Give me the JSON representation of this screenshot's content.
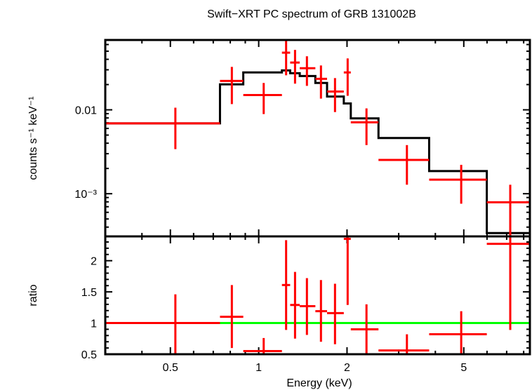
{
  "chart_data": [
    {
      "type": "line",
      "panel": "spectrum",
      "title": "Swift−XRT PC spectrum of GRB 131002B",
      "xlabel": "Energy (keV)",
      "ylabel": "counts s⁻¹ keV⁻¹",
      "xscale": "log",
      "yscale": "log",
      "xlim": [
        0.3,
        8.4
      ],
      "ylim": [
        0.00031,
        0.068
      ],
      "yticks": [
        {
          "value": 0.01,
          "label": "0.01"
        },
        {
          "value": 0.001,
          "label": "10⁻³"
        }
      ],
      "grid": false,
      "series": [
        {
          "name": "data",
          "color": "#ff0000",
          "points": [
            {
              "xlo": 0.3,
              "xhi": 0.738,
              "x": 0.52,
              "y": 0.0069,
              "ylo": 0.0034,
              "yhi": 0.0106
            },
            {
              "xlo": 0.738,
              "xhi": 0.886,
              "x": 0.81,
              "y": 0.0221,
              "ylo": 0.0117,
              "yhi": 0.0325
            },
            {
              "xlo": 0.886,
              "xhi": 1.2,
              "x": 1.04,
              "y": 0.015,
              "ylo": 0.0089,
              "yhi": 0.0209
            },
            {
              "xlo": 1.2,
              "xhi": 1.28,
              "x": 1.24,
              "y": 0.048,
              "ylo": 0.0258,
              "yhi": 0.068
            },
            {
              "xlo": 1.28,
              "xhi": 1.38,
              "x": 1.33,
              "y": 0.0366,
              "ylo": 0.0205,
              "yhi": 0.0518
            },
            {
              "xlo": 1.38,
              "xhi": 1.56,
              "x": 1.46,
              "y": 0.0313,
              "ylo": 0.0193,
              "yhi": 0.0435
            },
            {
              "xlo": 1.56,
              "xhi": 1.71,
              "x": 1.63,
              "y": 0.0234,
              "ylo": 0.0136,
              "yhi": 0.0338
            },
            {
              "xlo": 1.71,
              "xhi": 1.95,
              "x": 1.82,
              "y": 0.0165,
              "ylo": 0.0094,
              "yhi": 0.0239
            },
            {
              "xlo": 1.95,
              "xhi": 2.06,
              "x": 2.01,
              "y": 0.0279,
              "ylo": 0.0147,
              "yhi": 0.041
            },
            {
              "xlo": 2.06,
              "xhi": 2.56,
              "x": 2.33,
              "y": 0.0071,
              "ylo": 0.0038,
              "yhi": 0.0104
            },
            {
              "xlo": 2.56,
              "xhi": 3.81,
              "x": 3.2,
              "y": 0.00253,
              "ylo": 0.00128,
              "yhi": 0.0038
            },
            {
              "xlo": 3.81,
              "xhi": 5.99,
              "x": 4.9,
              "y": 0.00147,
              "ylo": 0.00076,
              "yhi": 0.00221
            },
            {
              "xlo": 5.99,
              "xhi": 8.4,
              "x": 7.2,
              "y": 0.00079,
              "ylo": 0.00028,
              "yhi": 0.00128
            }
          ]
        },
        {
          "name": "model",
          "color": "#000000",
          "steps": [
            {
              "xlo": 0.3,
              "xhi": 0.738,
              "y": 0.0069
            },
            {
              "xlo": 0.738,
              "xhi": 0.886,
              "y": 0.0201
            },
            {
              "xlo": 0.886,
              "xhi": 1.2,
              "y": 0.0279
            },
            {
              "xlo": 1.2,
              "xhi": 1.28,
              "y": 0.0295
            },
            {
              "xlo": 1.28,
              "xhi": 1.38,
              "y": 0.0273
            },
            {
              "xlo": 1.38,
              "xhi": 1.56,
              "y": 0.0253
            },
            {
              "xlo": 1.56,
              "xhi": 1.71,
              "y": 0.0209
            },
            {
              "xlo": 1.71,
              "xhi": 1.95,
              "y": 0.0144
            },
            {
              "xlo": 1.95,
              "xhi": 2.06,
              "y": 0.0119
            },
            {
              "xlo": 2.06,
              "xhi": 2.56,
              "y": 0.0079
            },
            {
              "xlo": 2.56,
              "xhi": 3.81,
              "y": 0.00461
            },
            {
              "xlo": 3.81,
              "xhi": 5.99,
              "y": 0.00186
            },
            {
              "xlo": 5.99,
              "xhi": 8.4,
              "y": 0.00034
            }
          ]
        }
      ]
    },
    {
      "type": "line",
      "panel": "ratio",
      "xlabel": "Energy (keV)",
      "ylabel": "ratio",
      "xscale": "log",
      "xlim": [
        0.3,
        8.4
      ],
      "ylim": [
        0.5,
        2.39
      ],
      "xticks": [
        {
          "value": 0.5,
          "label": "0.5"
        },
        {
          "value": 1,
          "label": "1"
        },
        {
          "value": 2,
          "label": "2"
        },
        {
          "value": 5,
          "label": "5"
        }
      ],
      "yticks": [
        {
          "value": 0.5,
          "label": "0.5"
        },
        {
          "value": 1,
          "label": "1"
        },
        {
          "value": 1.5,
          "label": "1.5"
        },
        {
          "value": 2,
          "label": "2"
        }
      ],
      "grid": false,
      "reference_line": {
        "y": 1,
        "color": "#00ff00"
      },
      "series": [
        {
          "name": "ratio",
          "color": "#ff0000",
          "points": [
            {
              "xlo": 0.3,
              "xhi": 0.738,
              "x": 0.52,
              "y": 1.0,
              "ylo": 0.5,
              "yhi": 1.46
            },
            {
              "xlo": 0.738,
              "xhi": 0.886,
              "x": 0.81,
              "y": 1.1,
              "ylo": 0.6,
              "yhi": 1.61
            },
            {
              "xlo": 0.886,
              "xhi": 1.2,
              "x": 1.04,
              "y": 0.55,
              "ylo": 0.5,
              "yhi": 0.76
            },
            {
              "xlo": 1.2,
              "xhi": 1.28,
              "x": 1.24,
              "y": 1.61,
              "ylo": 0.89,
              "yhi": 2.33
            },
            {
              "xlo": 1.28,
              "xhi": 1.38,
              "x": 1.33,
              "y": 1.29,
              "ylo": 0.75,
              "yhi": 1.82
            },
            {
              "xlo": 1.38,
              "xhi": 1.56,
              "x": 1.46,
              "y": 1.27,
              "ylo": 0.81,
              "yhi": 1.72
            },
            {
              "xlo": 1.56,
              "xhi": 1.71,
              "x": 1.63,
              "y": 1.19,
              "ylo": 0.7,
              "yhi": 1.69
            },
            {
              "xlo": 1.71,
              "xhi": 1.95,
              "x": 1.82,
              "y": 1.16,
              "ylo": 0.66,
              "yhi": 1.63
            },
            {
              "xlo": 1.95,
              "xhi": 2.06,
              "x": 2.01,
              "y": 2.35,
              "ylo": 1.29,
              "yhi": 2.39
            },
            {
              "xlo": 2.06,
              "xhi": 2.56,
              "x": 2.33,
              "y": 0.9,
              "ylo": 0.5,
              "yhi": 1.3
            },
            {
              "xlo": 2.56,
              "xhi": 3.81,
              "x": 3.2,
              "y": 0.56,
              "ylo": 0.5,
              "yhi": 0.82
            },
            {
              "xlo": 3.81,
              "xhi": 5.99,
              "x": 4.9,
              "y": 0.82,
              "ylo": 0.5,
              "yhi": 1.19
            },
            {
              "xlo": 5.99,
              "xhi": 8.4,
              "x": 7.2,
              "y": 2.27,
              "ylo": 0.89,
              "yhi": 2.39
            }
          ]
        }
      ]
    }
  ]
}
